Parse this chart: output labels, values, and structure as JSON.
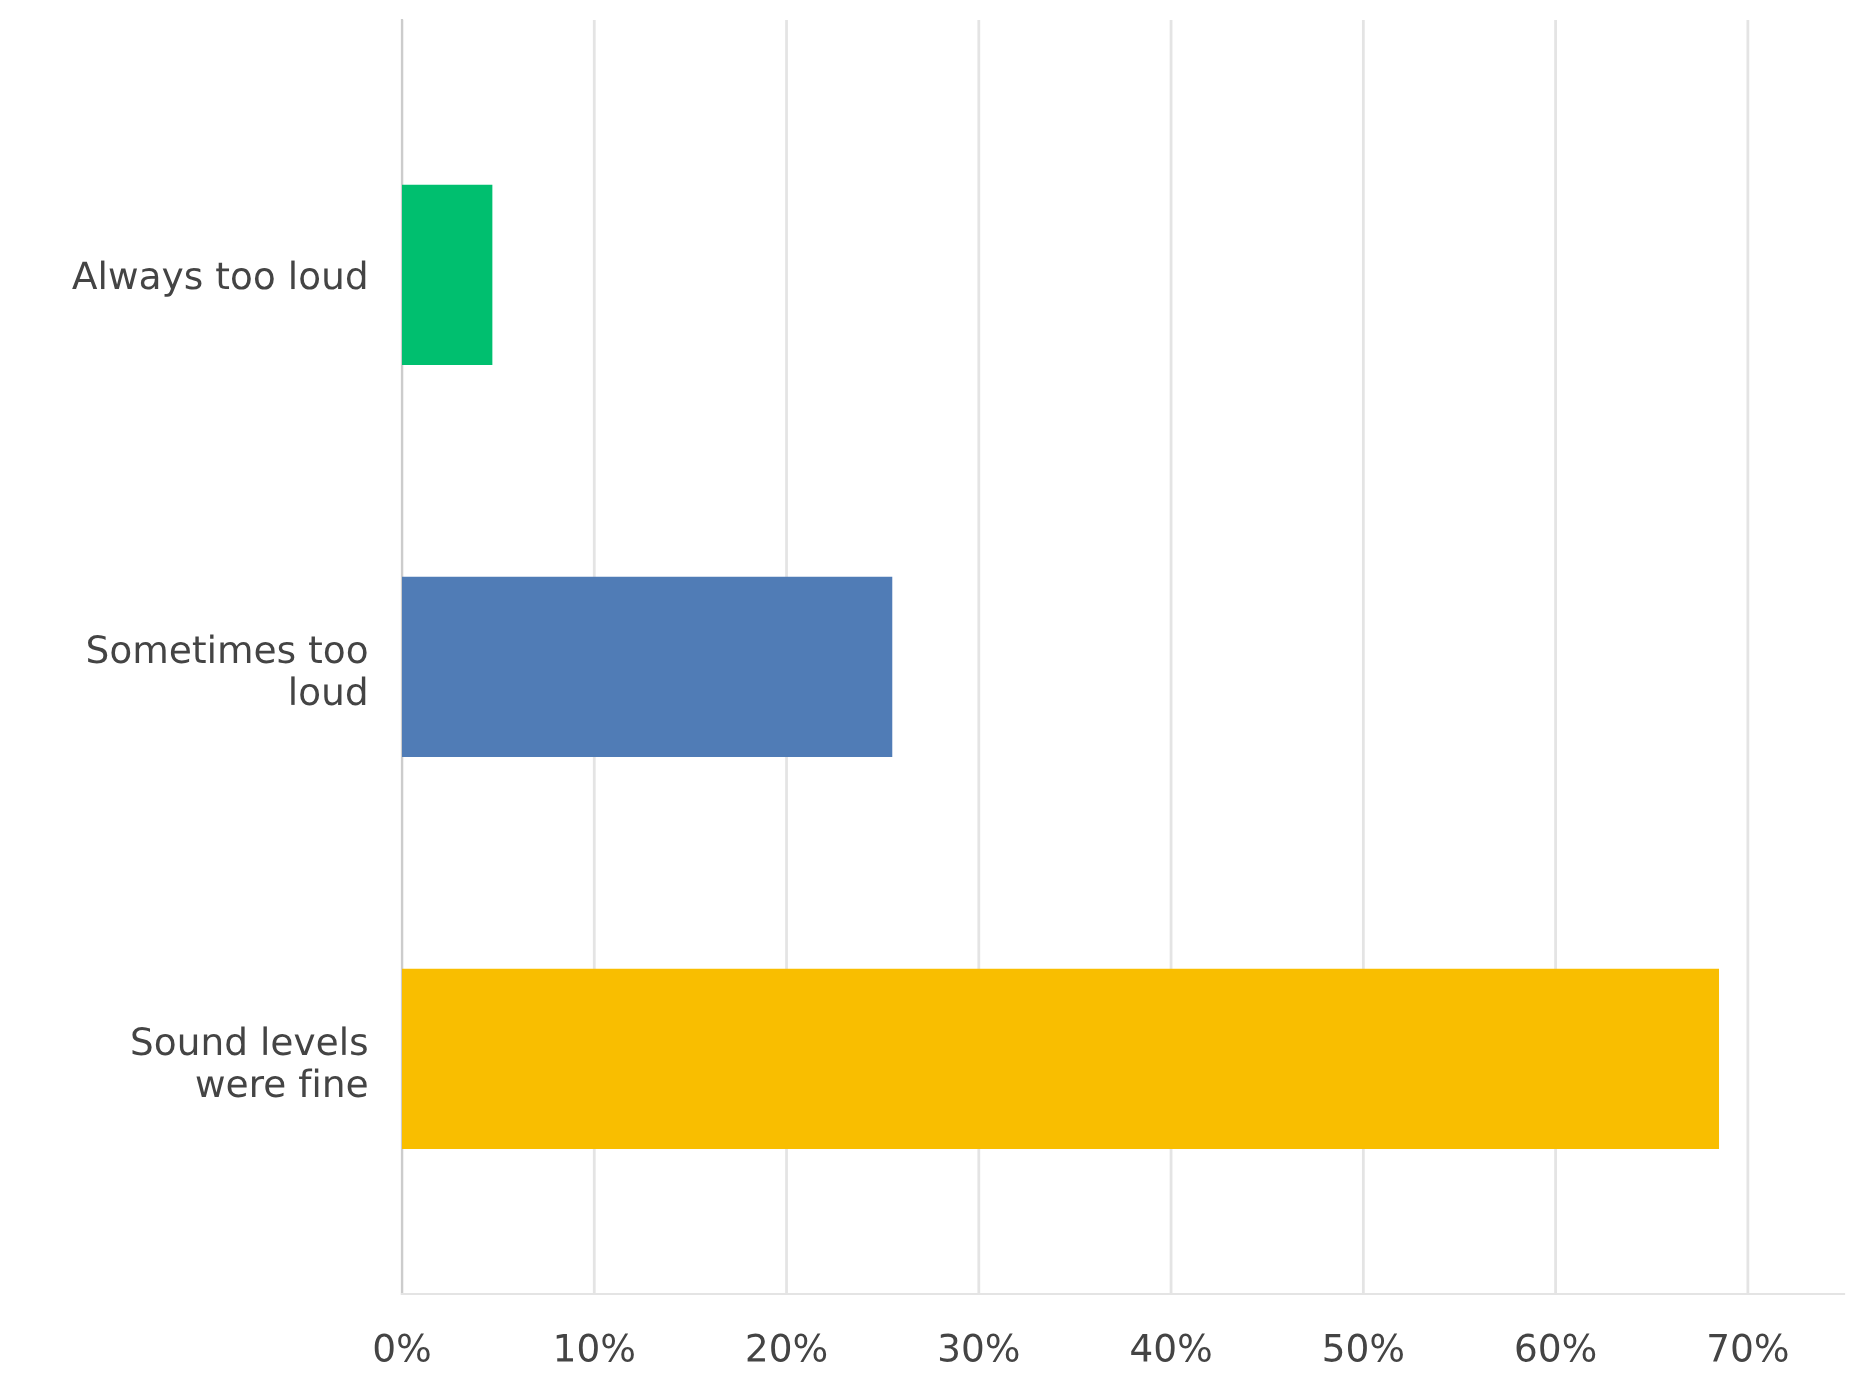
{
  "chart_data": {
    "type": "bar",
    "orientation": "horizontal",
    "categories": [
      "Always too loud",
      "Sometimes too\nloud",
      "Sound levels\nwere fine"
    ],
    "values": [
      4.7,
      25.5,
      68.5
    ],
    "colors": [
      "#00bf6f",
      "#507cb6",
      "#f9be00"
    ],
    "xlim": [
      0,
      75
    ],
    "xticks": [
      {
        "value": 0,
        "label": "0%"
      },
      {
        "value": 10,
        "label": "10%"
      },
      {
        "value": 20,
        "label": "20%"
      },
      {
        "value": 30,
        "label": "30%"
      },
      {
        "value": 40,
        "label": "40%"
      },
      {
        "value": 50,
        "label": "50%"
      },
      {
        "value": 60,
        "label": "60%"
      },
      {
        "value": 70,
        "label": "70%"
      }
    ],
    "grid": "x",
    "legend": false
  }
}
